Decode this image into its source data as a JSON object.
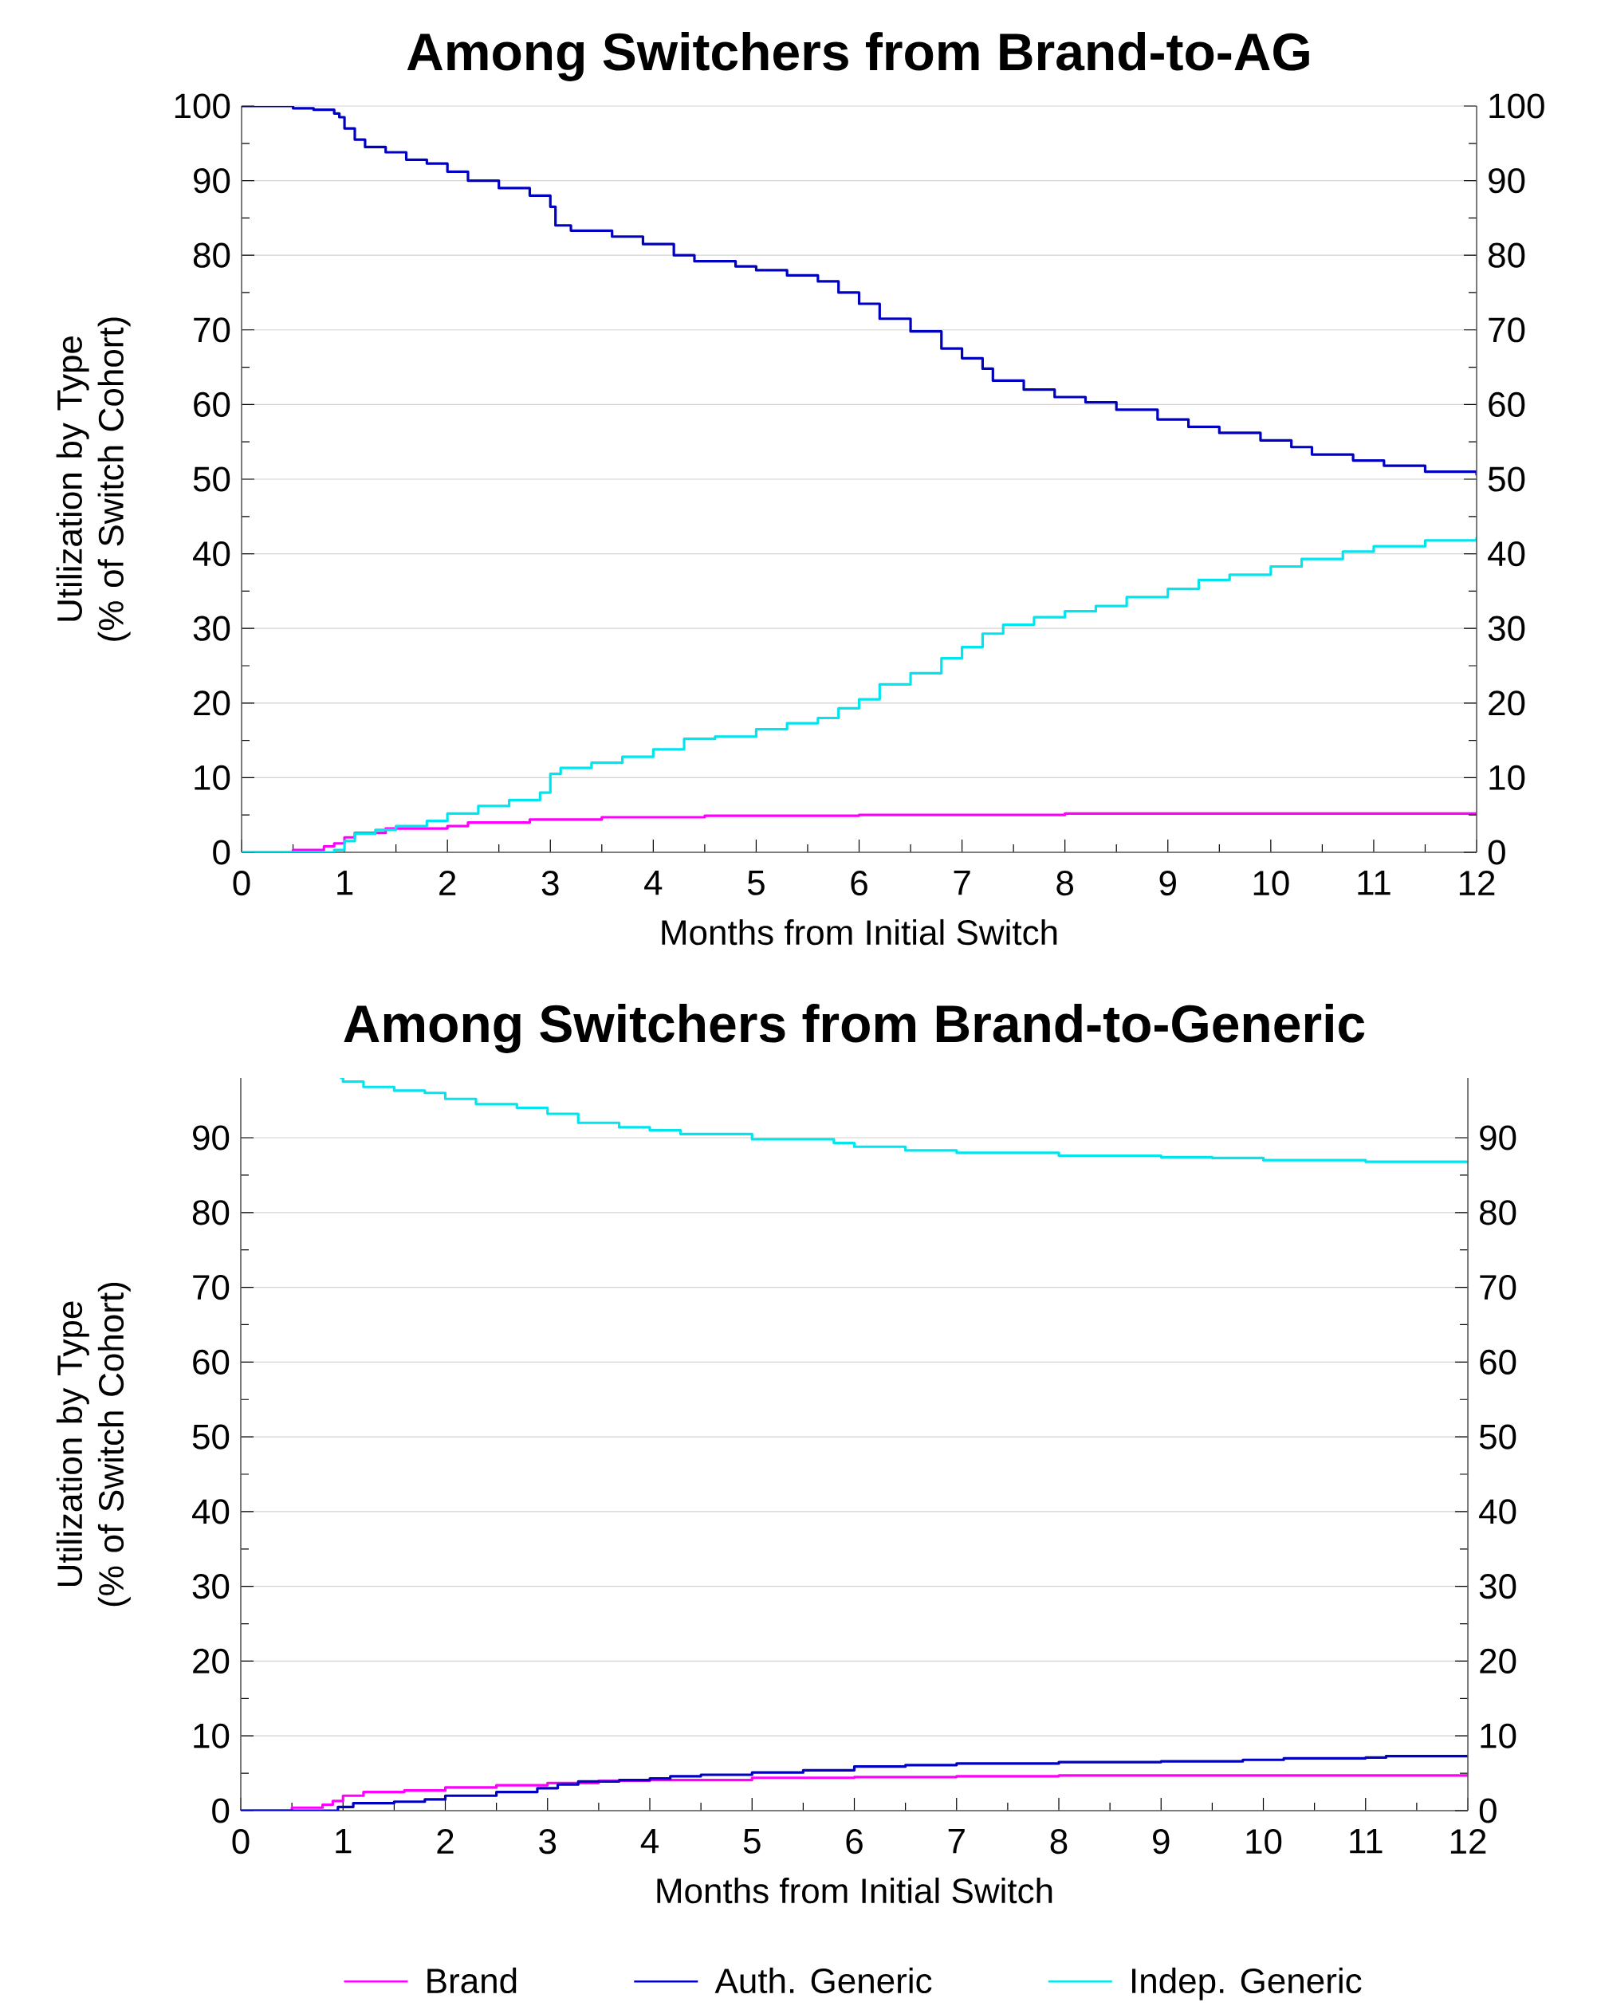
{
  "chart_data": [
    {
      "type": "step",
      "title": "Among Switchers from Brand-to-AG",
      "xlabel": "Months from Initial Switch",
      "ylabel": "Utilization by Type (% of Switch Cohort)",
      "xlim": [
        0,
        12
      ],
      "xticks": [
        0,
        1,
        2,
        3,
        4,
        5,
        6,
        7,
        8,
        9,
        10,
        11,
        12
      ],
      "ylim": [
        0,
        100
      ],
      "yticks": [
        0,
        10,
        20,
        30,
        40,
        50,
        60,
        70,
        80,
        90,
        100
      ],
      "y2lim": [
        0,
        100
      ],
      "y2ticks": [
        0,
        10,
        20,
        30,
        40,
        50,
        60,
        70,
        80,
        90,
        100
      ],
      "grid": "y",
      "legend": false,
      "line_style": "solid",
      "marker": "none",
      "series": [
        {
          "color": "#ff00ff",
          "x": [
            0,
            0.4,
            0.5,
            0.8,
            0.9,
            1.0,
            1.1,
            1.4,
            2.0,
            2.2,
            2.8,
            3.5,
            4.5,
            6.0,
            8.0,
            12
          ],
          "values": [
            0,
            0,
            0.3,
            0.8,
            1.2,
            2,
            2.6,
            3.2,
            3.5,
            4,
            4.4,
            4.7,
            4.9,
            5.0,
            5.2,
            5.2
          ]
        },
        {
          "color": "#0000c0",
          "x": [
            0,
            0.4,
            0.5,
            0.7,
            0.9,
            0.95,
            1.0,
            1.1,
            1.2,
            1.4,
            1.6,
            1.8,
            2.0,
            2.2,
            2.5,
            2.8,
            3.0,
            3.05,
            3.2,
            3.6,
            3.9,
            4.2,
            4.4,
            4.8,
            5.0,
            5.3,
            5.6,
            5.8,
            6.0,
            6.2,
            6.5,
            6.8,
            7.0,
            7.2,
            7.3,
            7.6,
            7.9,
            8.2,
            8.5,
            8.9,
            9.2,
            9.5,
            9.9,
            10.2,
            10.4,
            10.8,
            11.1,
            11.5,
            12
          ],
          "values": [
            100,
            100,
            99.7,
            99.5,
            99.0,
            98.5,
            97,
            95.5,
            94.5,
            93.8,
            92.8,
            92.3,
            91.2,
            90,
            89,
            88,
            86.5,
            84,
            83.3,
            82.5,
            81.5,
            80,
            79.2,
            78.5,
            78,
            77.3,
            76.5,
            75,
            73.5,
            71.5,
            69.8,
            67.5,
            66.2,
            64.8,
            63.2,
            62,
            61,
            60.3,
            59.3,
            58,
            57,
            56.2,
            55.2,
            54.3,
            53.3,
            52.5,
            51.8,
            51,
            50.5
          ]
        },
        {
          "color": "#00e5ee",
          "x": [
            0,
            0.7,
            0.9,
            1.0,
            1.1,
            1.3,
            1.5,
            1.8,
            2.0,
            2.3,
            2.6,
            2.9,
            3.0,
            3.1,
            3.4,
            3.7,
            4.0,
            4.3,
            4.6,
            5.0,
            5.3,
            5.6,
            5.8,
            6.0,
            6.2,
            6.5,
            6.8,
            7.0,
            7.2,
            7.4,
            7.7,
            8.0,
            8.3,
            8.6,
            9.0,
            9.3,
            9.6,
            10.0,
            10.3,
            10.7,
            11.0,
            11.5,
            12
          ],
          "values": [
            0,
            0,
            0.3,
            1.5,
            2.5,
            3.0,
            3.5,
            4.2,
            5.2,
            6.2,
            7.0,
            8.0,
            10.5,
            11.3,
            12,
            12.8,
            13.8,
            15.2,
            15.5,
            16.5,
            17.3,
            18,
            19.3,
            20.5,
            22.5,
            24,
            26,
            27.5,
            29.3,
            30.5,
            31.5,
            32.3,
            33,
            34.2,
            35.3,
            36.5,
            37.2,
            38.3,
            39.3,
            40.3,
            41,
            41.8,
            42.2
          ]
        }
      ]
    },
    {
      "type": "step",
      "title": "Among Switchers from Brand-to-Generic",
      "xlabel": "Months from Initial Switch",
      "ylabel": "Utilization by Type (% of Switch Cohort)",
      "xlim": [
        0,
        12
      ],
      "xticks": [
        0,
        1,
        2,
        3,
        4,
        5,
        6,
        7,
        8,
        9,
        10,
        11,
        12
      ],
      "ylim": [
        0,
        98
      ],
      "yticks": [
        0,
        10,
        20,
        30,
        40,
        50,
        60,
        70,
        80,
        90
      ],
      "y2lim": [
        0,
        98
      ],
      "y2ticks": [
        0,
        10,
        20,
        30,
        40,
        50,
        60,
        70,
        80,
        90
      ],
      "grid": "y",
      "legend": "bottom",
      "line_style": "solid",
      "marker": "none",
      "series": [
        {
          "name": "Brand",
          "color": "#ff00ff",
          "x": [
            0,
            0.5,
            0.8,
            0.9,
            1.0,
            1.2,
            1.6,
            2.0,
            2.5,
            3.0,
            3.5,
            4.0,
            5.0,
            6.0,
            7.0,
            8.0,
            10,
            12
          ],
          "values": [
            0,
            0.4,
            0.8,
            1.3,
            2.0,
            2.5,
            2.7,
            3.1,
            3.4,
            3.7,
            4.0,
            4.1,
            4.4,
            4.5,
            4.6,
            4.7,
            4.7,
            4.8
          ]
        },
        {
          "name": "Auth. Generic",
          "color": "#0000c0",
          "x": [
            0,
            0.8,
            0.95,
            1.1,
            1.5,
            1.8,
            2.0,
            2.5,
            2.9,
            3.1,
            3.3,
            3.7,
            4.0,
            4.2,
            4.5,
            5.0,
            5.5,
            6.0,
            6.5,
            7.0,
            8.0,
            9.0,
            9.8,
            10.2,
            11.0,
            11.2,
            12
          ],
          "values": [
            0,
            0,
            0.5,
            1.0,
            1.2,
            1.5,
            2.0,
            2.5,
            3.0,
            3.5,
            3.9,
            4.1,
            4.3,
            4.6,
            4.8,
            5.1,
            5.4,
            5.9,
            6.1,
            6.3,
            6.5,
            6.6,
            6.8,
            7.0,
            7.1,
            7.3,
            7.3
          ]
        },
        {
          "name": "Indep. Generic",
          "color": "#00e5ee",
          "x": [
            0.97,
            1.0,
            1.2,
            1.5,
            1.8,
            2.0,
            2.3,
            2.7,
            3.0,
            3.3,
            3.7,
            4.0,
            4.3,
            5.0,
            5.8,
            6.0,
            6.5,
            7.0,
            8.0,
            9.0,
            9.5,
            10.0,
            11.0,
            12
          ],
          "values": [
            98,
            97.5,
            96.8,
            96.3,
            96,
            95.2,
            94.5,
            94,
            93.2,
            92,
            91.4,
            91,
            90.5,
            89.8,
            89.3,
            88.8,
            88.3,
            88,
            87.6,
            87.4,
            87.3,
            87.0,
            86.8,
            86.6
          ]
        }
      ]
    }
  ]
}
